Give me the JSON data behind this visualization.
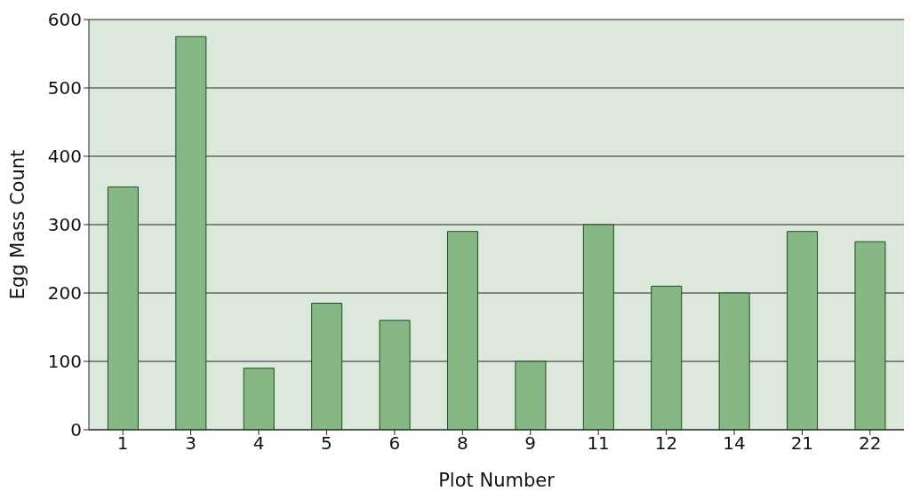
{
  "chart_data": {
    "type": "bar",
    "xlabel": "Plot Number",
    "ylabel": "Egg Mass Count",
    "categories": [
      "1",
      "3",
      "4",
      "5",
      "6",
      "8",
      "9",
      "11",
      "12",
      "14",
      "21",
      "22"
    ],
    "values": [
      355,
      575,
      90,
      185,
      160,
      290,
      100,
      300,
      210,
      200,
      290,
      275
    ],
    "color": "#86b886",
    "ylim": [
      0,
      600
    ],
    "yticks": [
      0,
      100,
      200,
      300,
      400,
      500,
      600
    ],
    "grid": "y"
  }
}
